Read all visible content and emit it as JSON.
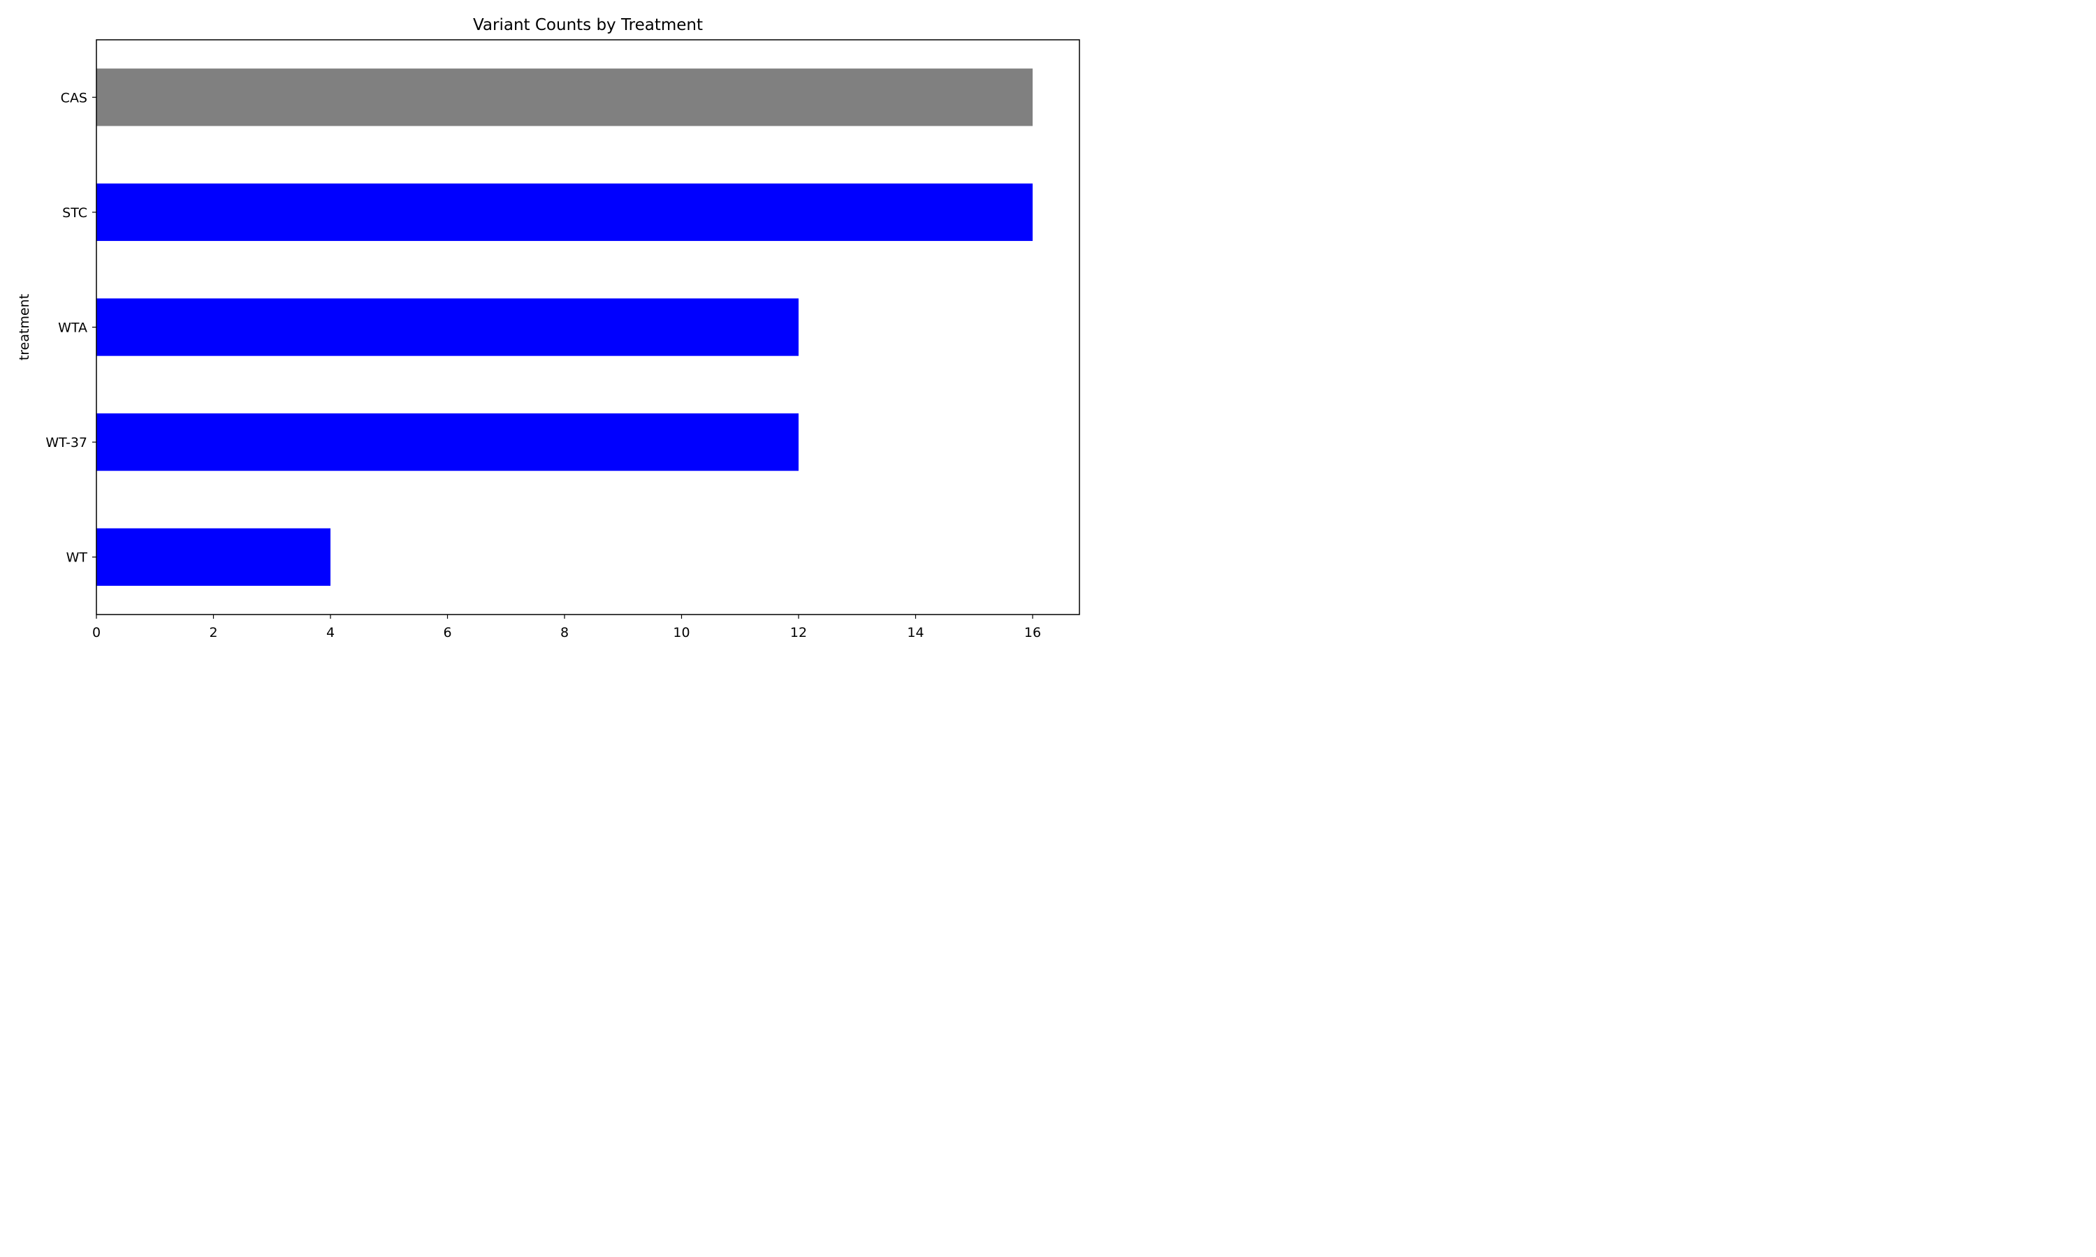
{
  "chart_data": {
    "type": "bar",
    "orientation": "horizontal",
    "title": "Variant Counts by Treatment",
    "xlabel": "",
    "ylabel": "treatment",
    "categories": [
      "WT",
      "WT-37",
      "WTA",
      "STC",
      "CAS"
    ],
    "values": [
      4,
      12,
      12,
      16,
      16
    ],
    "bar_colors": [
      "#0000ff",
      "#0000ff",
      "#0000ff",
      "#0000ff",
      "#808080"
    ],
    "xlim": [
      0,
      16.8
    ],
    "xticks": [
      0,
      2,
      4,
      6,
      8,
      10,
      12,
      14,
      16
    ],
    "xtick_labels": [
      "0",
      "2",
      "4",
      "6",
      "8",
      "10",
      "12",
      "14",
      "16"
    ],
    "grid": false,
    "legend": "none"
  }
}
